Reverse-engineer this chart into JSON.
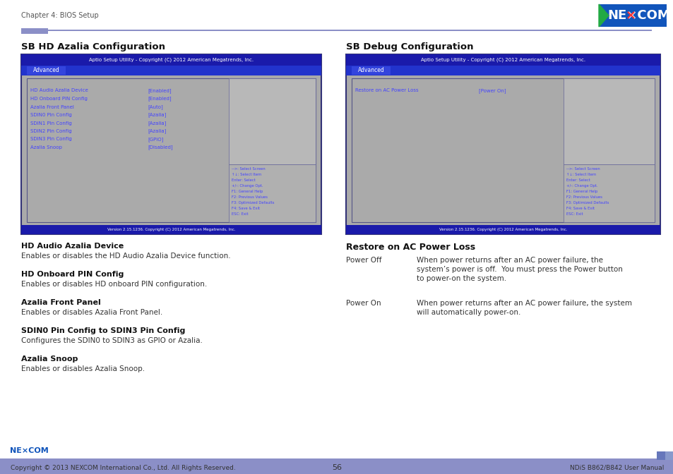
{
  "page_width": 9.54,
  "page_height": 6.72,
  "bg_color": "#ffffff",
  "header_text": "Chapter 4: BIOS Setup",
  "accent_bar_color": "#8b8fc7",
  "left_section_title": "SB HD Azalia Configuration",
  "right_section_title": "SB Debug Configuration",
  "bios_header_bg": "#1a1aaa",
  "bios_header_text": "Aptio Setup Utility - Copyright (C) 2012 American Megatrends, Inc.",
  "bios_tab_bg": "#2222bb",
  "bios_tab_text": "Advanced",
  "bios_body_bg": "#aaaaaa",
  "bios_footer_bg": "#1a1aaa",
  "bios_footer_text": "Version 2.15.1236. Copyright (C) 2012 American Megatrends, Inc.",
  "bios_item_color": "#4444ff",
  "bios_value_color": "#4444ff",
  "bios_help_color": "#4444ff",
  "left_bios_items": [
    [
      "HD Audio Azalia Device",
      "[Enabled]"
    ],
    [
      "HD Onboard PIN Config",
      "[Enabled]"
    ],
    [
      "Azalia Front Panel",
      "[Auto]"
    ],
    [
      "SDIN0 Pin Config",
      "[Azalia]"
    ],
    [
      "SDIN1 Pin Config",
      "[Azalia]"
    ],
    [
      "SDIN2 Pin Config",
      "[Azalia]"
    ],
    [
      "SDIN3 Pin Config",
      "[GPIO]"
    ],
    [
      "Azalia Snoop",
      "[Disabled]"
    ]
  ],
  "right_bios_items": [
    [
      "Restore on AC Power Loss",
      "[Power On]"
    ]
  ],
  "help_lines": [
    "-->: Select Screen",
    "↑↓: Select Item",
    "Enter: Select",
    "+/-: Change Opt.",
    "F1: General Help",
    "F2: Previous Values",
    "F3: Optimized Defaults",
    "F4: Save & Exit",
    "ESC: Exit"
  ],
  "left_desc_items": [
    {
      "title": "HD Audio Azalia Device",
      "text": "Enables or disables the HD Audio Azalia Device function."
    },
    {
      "title": "HD Onboard PIN Config",
      "text": "Enables or disables HD onboard PIN configuration."
    },
    {
      "title": "Azalia Front Panel",
      "text": "Enables or disables Azalia Front Panel."
    },
    {
      "title": "SDIN0 Pin Config to SDIN3 Pin Config",
      "text": "Configures the SDIN0 to SDIN3 as GPIO or Azalia."
    },
    {
      "title": "Azalia Snoop",
      "text": "Enables or disables Azalia Snoop."
    }
  ],
  "right_section2_title": "Restore on AC Power Loss",
  "right_desc_items": [
    {
      "label": "Power Off",
      "lines": [
        "When power returns after an AC power failure, the",
        "system’s power is off.  You must press the Power button",
        "to power-on the system."
      ]
    },
    {
      "label": "Power On",
      "lines": [
        "When power returns after an AC power failure, the system",
        "will automatically power-on."
      ]
    }
  ],
  "footer_bar_color": "#8b8fc7",
  "footer_copyright": "Copyright © 2013 NEXCOM International Co., Ltd. All Rights Reserved.",
  "footer_page": "56",
  "footer_right": "NDiS B862/B842 User Manual"
}
